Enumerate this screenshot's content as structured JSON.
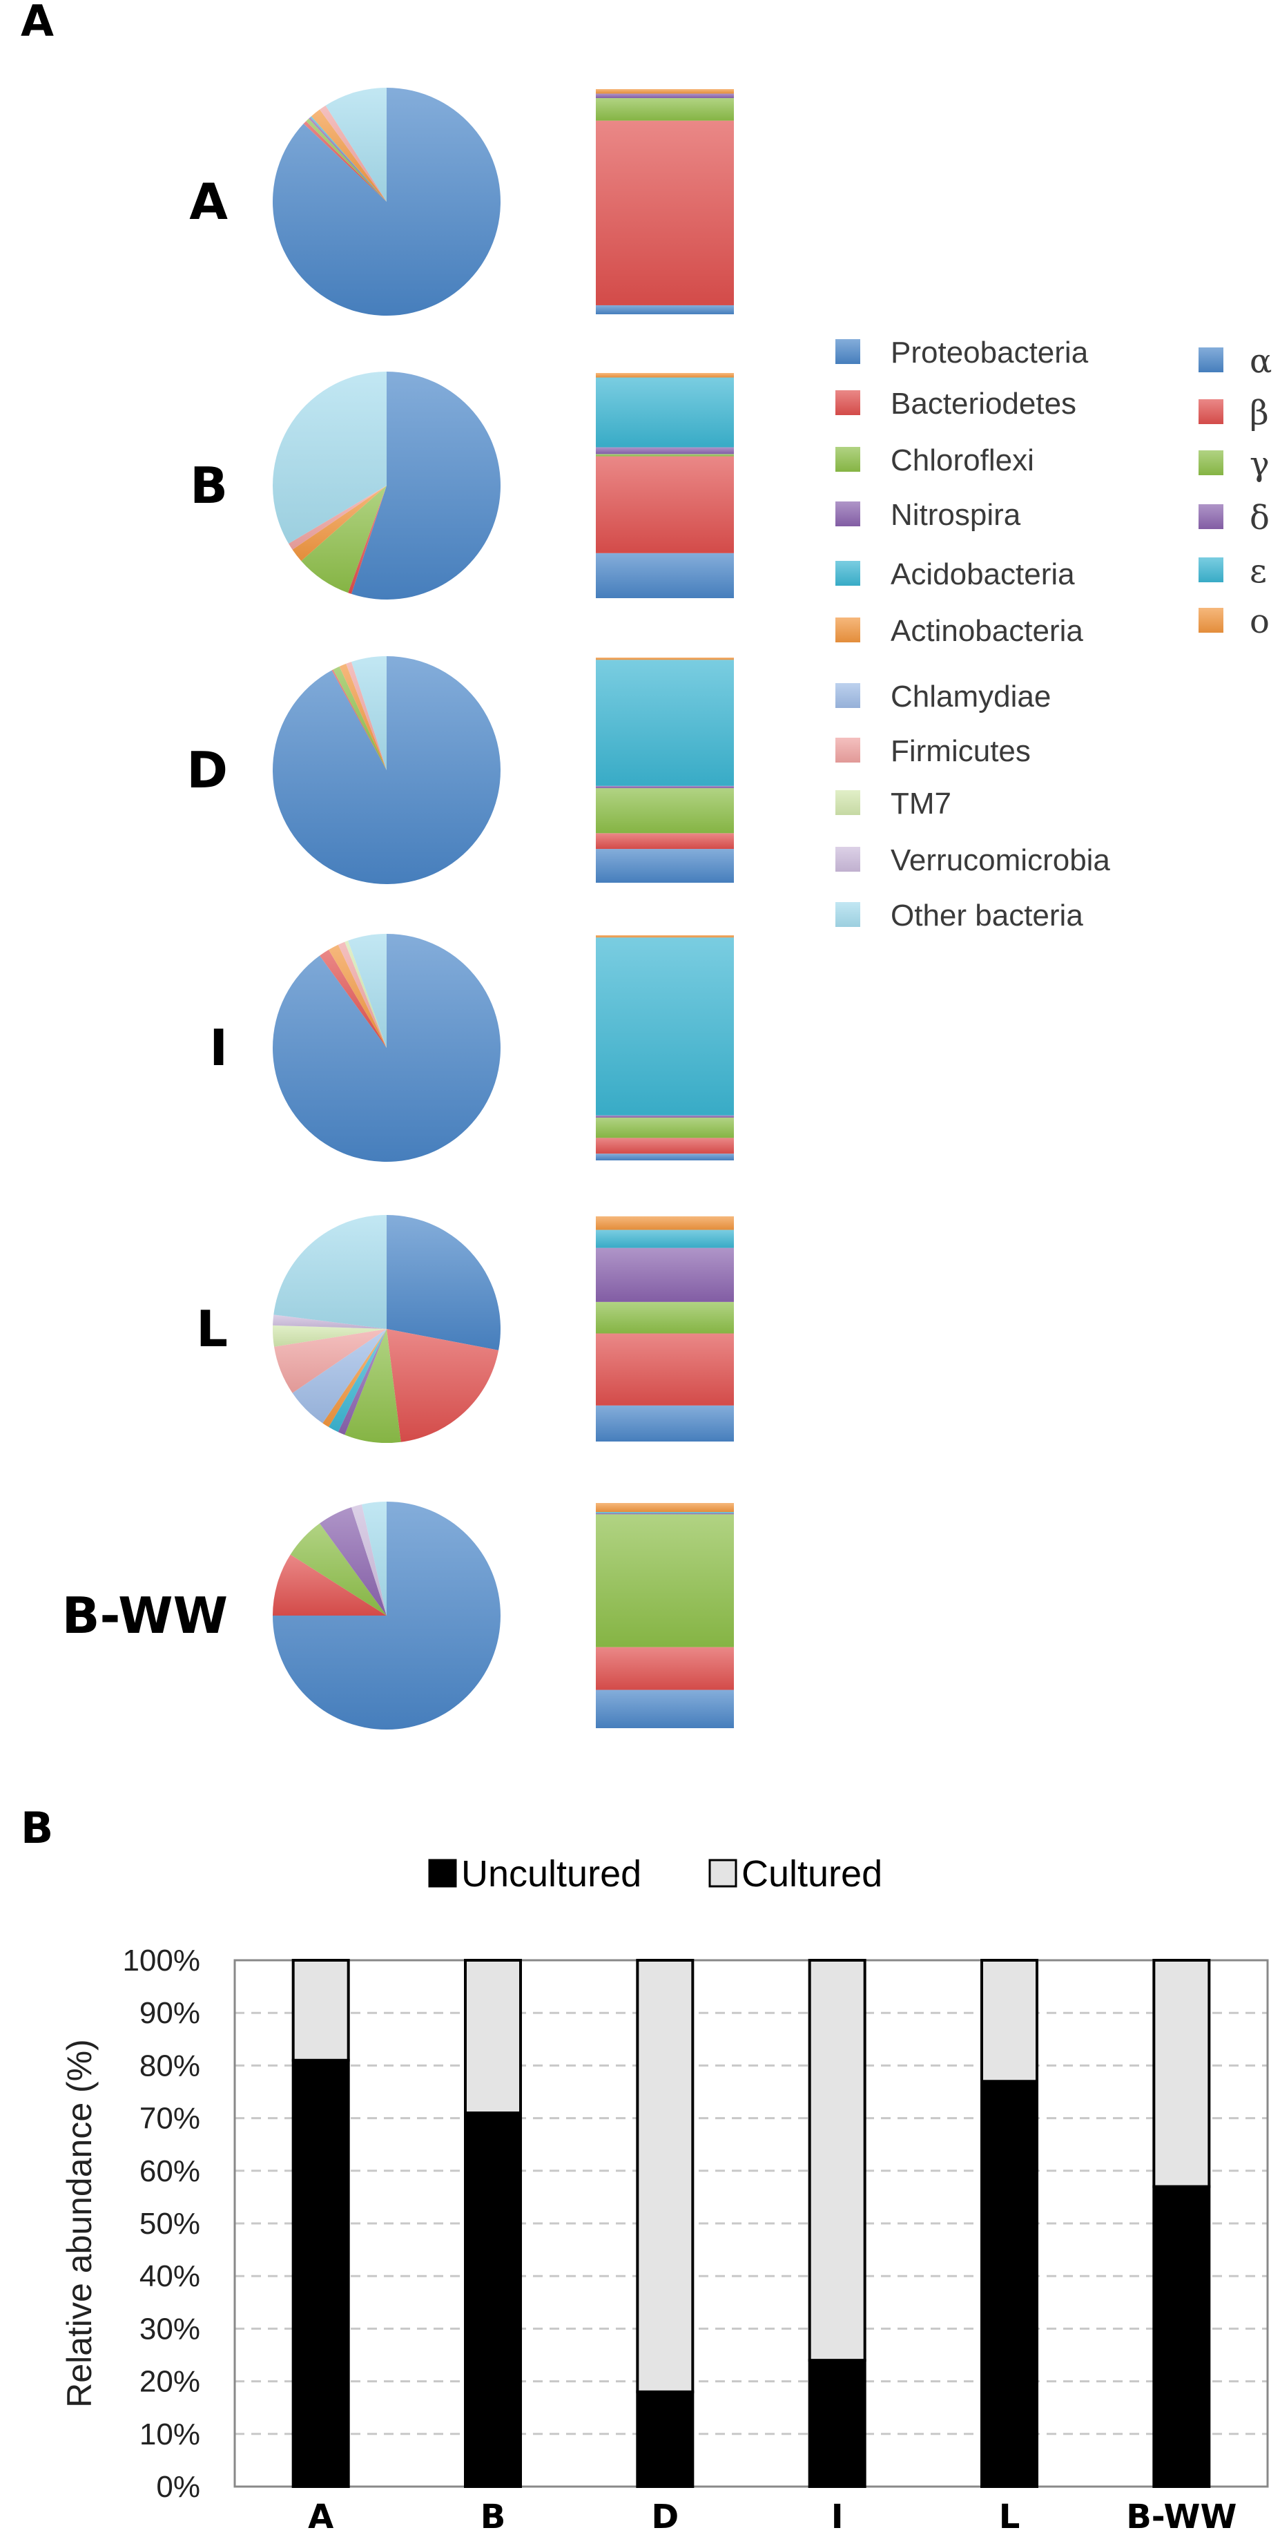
{
  "panels": {
    "a_letter": "A",
    "b_letter": "B"
  },
  "colors": {
    "Proteobacteria": "#4a86c8",
    "Bacteriodetes": "#e0504e",
    "Chloroflexi": "#8dbf48",
    "Nitrospira": "#8a63ae",
    "Acidobacteria": "#3cb6d3",
    "Actinobacteria": "#f2963f",
    "Chlamydiae": "#9ebbe6",
    "Firmicutes": "#efa3a1",
    "TM7": "#d3e7ae",
    "Verrucomicrobia": "#ccbbdc",
    "Other bacteria": "#a6dced",
    "alpha": "#4a86c8",
    "beta": "#e0504e",
    "gamma": "#8dbf48",
    "delta": "#8a63ae",
    "epsilon": "#3cb6d3",
    "other": "#f2963f",
    "uncultured": "#000000",
    "cultured": "#e4e4e4"
  },
  "chart_data": [
    {
      "type": "pie",
      "panel": "A",
      "legend_phyla": [
        "Proteobacteria",
        "Bacteriodetes",
        "Chloroflexi",
        "Nitrospira",
        "Acidobacteria",
        "Actinobacteria",
        "Chlamydiae",
        "Firmicutes",
        "TM7",
        "Verrucomicrobia",
        "Other bacteria"
      ],
      "legend_classes": [
        {
          "key": "alpha",
          "label": "α"
        },
        {
          "key": "beta",
          "label": "β"
        },
        {
          "key": "gamma",
          "label": "γ"
        },
        {
          "key": "delta",
          "label": "δ"
        },
        {
          "key": "epsilon",
          "label": "ε"
        },
        {
          "key": "other",
          "label": "o"
        }
      ],
      "samples": [
        {
          "label": "A",
          "phyla": {
            "Proteobacteria": 87.0,
            "Bacteriodetes": 0.5,
            "Chloroflexi": 0.5,
            "Nitrospira": 0.3,
            "Acidobacteria": 0.2,
            "Actinobacteria": 1.5,
            "Chlamydiae": 0,
            "Firmicutes": 1.0,
            "TM7": 0,
            "Verrucomicrobia": 0,
            "Other bacteria": 9.0
          },
          "classes": {
            "alpha": 4,
            "beta": 82,
            "gamma": 10,
            "delta": 2,
            "epsilon": 0,
            "other": 2
          }
        },
        {
          "label": "B",
          "phyla": {
            "Proteobacteria": 55.0,
            "Bacteriodetes": 0.5,
            "Chloroflexi": 8.0,
            "Nitrospira": 0,
            "Acidobacteria": 0,
            "Actinobacteria": 2.0,
            "Chlamydiae": 0,
            "Firmicutes": 1.0,
            "TM7": 0,
            "Verrucomicrobia": 0,
            "Other bacteria": 33.5
          },
          "classes": {
            "alpha": 20,
            "beta": 43,
            "gamma": 1,
            "delta": 3,
            "epsilon": 31,
            "other": 2
          }
        },
        {
          "label": "D",
          "phyla": {
            "Proteobacteria": 92.0,
            "Bacteriodetes": 0.2,
            "Chloroflexi": 1.0,
            "Nitrospira": 0,
            "Acidobacteria": 0,
            "Actinobacteria": 1.0,
            "Chlamydiae": 0,
            "Firmicutes": 0.8,
            "TM7": 0,
            "Verrucomicrobia": 0,
            "Other bacteria": 5.0
          },
          "classes": {
            "alpha": 15,
            "beta": 7,
            "gamma": 20,
            "delta": 1,
            "epsilon": 56,
            "other": 1
          }
        },
        {
          "label": "I",
          "phyla": {
            "Proteobacteria": 90.0,
            "Bacteriodetes": 1.5,
            "Chloroflexi": 0,
            "Nitrospira": 0,
            "Acidobacteria": 0,
            "Actinobacteria": 1.5,
            "Chlamydiae": 0,
            "Firmicutes": 1.0,
            "TM7": 0.5,
            "Verrucomicrobia": 0,
            "Other bacteria": 5.5
          },
          "classes": {
            "alpha": 3,
            "beta": 7,
            "gamma": 9,
            "delta": 1,
            "epsilon": 79,
            "other": 1
          }
        },
        {
          "label": "L",
          "phyla": {
            "Proteobacteria": 28.0,
            "Bacteriodetes": 20.0,
            "Chloroflexi": 8.0,
            "Nitrospira": 1.0,
            "Acidobacteria": 1.5,
            "Actinobacteria": 1.0,
            "Chlamydiae": 6.0,
            "Firmicutes": 7.0,
            "TM7": 3.0,
            "Verrucomicrobia": 1.5,
            "Other bacteria": 23.0
          },
          "classes": {
            "alpha": 16,
            "beta": 32,
            "gamma": 14,
            "delta": 24,
            "epsilon": 8,
            "other": 6
          }
        },
        {
          "label": "B-WW",
          "phyla": {
            "Proteobacteria": 75.0,
            "Bacteriodetes": 9.0,
            "Chloroflexi": 6.0,
            "Nitrospira": 5.0,
            "Acidobacteria": 0,
            "Actinobacteria": 0,
            "Chlamydiae": 0,
            "Firmicutes": 0,
            "TM7": 0,
            "Verrucomicrobia": 1.5,
            "Other bacteria": 3.5
          },
          "classes": {
            "alpha": 17,
            "beta": 19,
            "gamma": 59,
            "delta": 0.5,
            "epsilon": 0.5,
            "other": 4
          }
        }
      ]
    },
    {
      "type": "bar",
      "panel": "B",
      "stacked": true,
      "categories": [
        "A",
        "B",
        "D",
        "I",
        "L",
        "B-WW"
      ],
      "series": [
        {
          "name": "Uncultured",
          "values": [
            81,
            71,
            18,
            24,
            77,
            57
          ]
        },
        {
          "name": "Cultured",
          "values": [
            19,
            29,
            82,
            76,
            23,
            43
          ]
        }
      ],
      "ylabel": "Relative abundance (%)",
      "yticks": [
        "0%",
        "10%",
        "20%",
        "30%",
        "40%",
        "50%",
        "60%",
        "70%",
        "80%",
        "90%",
        "100%"
      ],
      "ylim": [
        0,
        100
      ],
      "grid": true,
      "legend_position": "top-center"
    }
  ]
}
